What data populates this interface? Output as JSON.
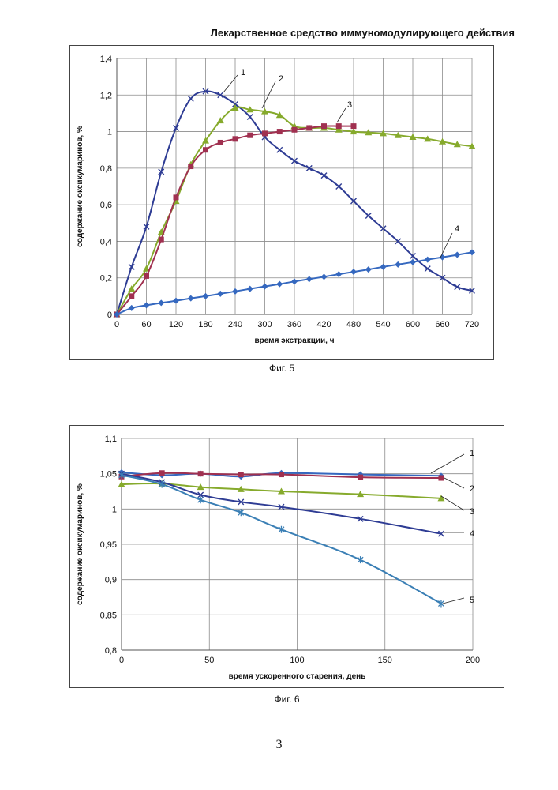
{
  "header": {
    "title": "Лекарственное средство иммуномодулирующего действия"
  },
  "page_number": "3",
  "chart_data": [
    {
      "type": "line",
      "caption": "Фиг. 5",
      "xlabel": "время экстракции, ч",
      "ylabel": "содержание оксикумаринов, %",
      "xlim": [
        0,
        720
      ],
      "ylim": [
        0,
        1.4
      ],
      "x_ticks": [
        0,
        60,
        120,
        180,
        240,
        300,
        360,
        420,
        480,
        540,
        600,
        660,
        720
      ],
      "y_ticks": [
        0,
        0.2,
        0.4,
        0.6,
        0.8,
        1,
        1.2,
        1.4
      ],
      "y_tick_labels": [
        "0",
        "0,2",
        "0,4",
        "0,6",
        "0,8",
        "1",
        "1,2",
        "1,4"
      ],
      "grid": true,
      "series": [
        {
          "name": "1",
          "color": "#2e3c94",
          "marker": "x",
          "x": [
            0,
            30,
            60,
            90,
            120,
            150,
            180,
            210,
            240,
            270,
            300,
            330,
            360,
            390,
            420,
            450,
            480,
            510,
            540,
            570,
            600,
            630,
            660,
            690,
            720
          ],
          "y": [
            0,
            0.26,
            0.48,
            0.78,
            1.02,
            1.18,
            1.22,
            1.2,
            1.15,
            1.08,
            0.97,
            0.9,
            0.84,
            0.8,
            0.76,
            0.7,
            0.62,
            0.54,
            0.47,
            0.4,
            0.32,
            0.25,
            0.2,
            0.15,
            0.13
          ]
        },
        {
          "name": "2",
          "color": "#86aa2c",
          "marker": "triangle",
          "x": [
            0,
            30,
            60,
            90,
            120,
            150,
            180,
            210,
            240,
            270,
            300,
            330,
            360,
            390,
            420,
            450,
            480,
            510,
            540,
            570,
            600,
            630,
            660,
            690,
            720
          ],
          "y": [
            0,
            0.14,
            0.25,
            0.45,
            0.62,
            0.82,
            0.95,
            1.06,
            1.13,
            1.12,
            1.11,
            1.09,
            1.03,
            1.02,
            1.02,
            1.01,
            1.0,
            0.995,
            0.99,
            0.98,
            0.97,
            0.96,
            0.945,
            0.93,
            0.92
          ]
        },
        {
          "name": "3",
          "color": "#a03050",
          "marker": "square",
          "x": [
            0,
            30,
            60,
            90,
            120,
            150,
            180,
            210,
            240,
            270,
            300,
            330,
            360,
            390,
            420,
            450,
            480
          ],
          "y": [
            0,
            0.1,
            0.21,
            0.41,
            0.64,
            0.81,
            0.9,
            0.94,
            0.96,
            0.98,
            0.99,
            1.0,
            1.01,
            1.02,
            1.03,
            1.03,
            1.03
          ]
        },
        {
          "name": "4",
          "color": "#3568bf",
          "marker": "diamond",
          "x": [
            0,
            30,
            60,
            90,
            120,
            150,
            180,
            210,
            240,
            270,
            300,
            330,
            360,
            390,
            420,
            450,
            480,
            510,
            540,
            570,
            600,
            630,
            660,
            690,
            720
          ],
          "y": [
            0,
            0.035,
            0.05,
            0.063,
            0.075,
            0.088,
            0.1,
            0.113,
            0.126,
            0.14,
            0.153,
            0.166,
            0.18,
            0.193,
            0.206,
            0.22,
            0.233,
            0.246,
            0.26,
            0.273,
            0.286,
            0.3,
            0.313,
            0.326,
            0.34
          ]
        }
      ]
    },
    {
      "type": "line",
      "caption": "Фиг. 6",
      "xlabel": "время ускоренного старения, день",
      "ylabel": "содержание оксикумаринов, %",
      "xlim": [
        0,
        200
      ],
      "ylim": [
        0.8,
        1.1
      ],
      "x_ticks": [
        0,
        50,
        100,
        150,
        200
      ],
      "y_ticks": [
        0.8,
        0.85,
        0.9,
        0.95,
        1,
        1.05,
        1.1
      ],
      "y_tick_labels": [
        "0,8",
        "0,85",
        "0,9",
        "0,95",
        "1",
        "1,05",
        "1,1"
      ],
      "grid": true,
      "series": [
        {
          "name": "1",
          "color": "#3568bf",
          "marker": "diamond",
          "x": [
            0,
            23,
            45,
            68,
            91,
            136,
            182
          ],
          "y": [
            1.052,
            1.048,
            1.05,
            1.046,
            1.051,
            1.049,
            1.047
          ]
        },
        {
          "name": "2",
          "color": "#a03050",
          "marker": "square",
          "x": [
            0,
            23,
            45,
            68,
            91,
            136,
            182
          ],
          "y": [
            1.046,
            1.051,
            1.05,
            1.049,
            1.049,
            1.045,
            1.044
          ]
        },
        {
          "name": "3",
          "color": "#86aa2c",
          "marker": "triangle",
          "x": [
            0,
            23,
            45,
            68,
            91,
            136,
            182
          ],
          "y": [
            1.035,
            1.036,
            1.031,
            1.028,
            1.025,
            1.021,
            1.015
          ]
        },
        {
          "name": "4",
          "color": "#2e3c94",
          "marker": "x",
          "x": [
            0,
            23,
            45,
            68,
            91,
            136,
            182
          ],
          "y": [
            1.05,
            1.038,
            1.02,
            1.01,
            1.003,
            0.986,
            0.965
          ]
        },
        {
          "name": "5",
          "color": "#3a7fb5",
          "marker": "star",
          "x": [
            0,
            23,
            45,
            68,
            91,
            136,
            182
          ],
          "y": [
            1.048,
            1.035,
            1.013,
            0.995,
            0.971,
            0.928,
            0.866
          ]
        }
      ]
    }
  ]
}
